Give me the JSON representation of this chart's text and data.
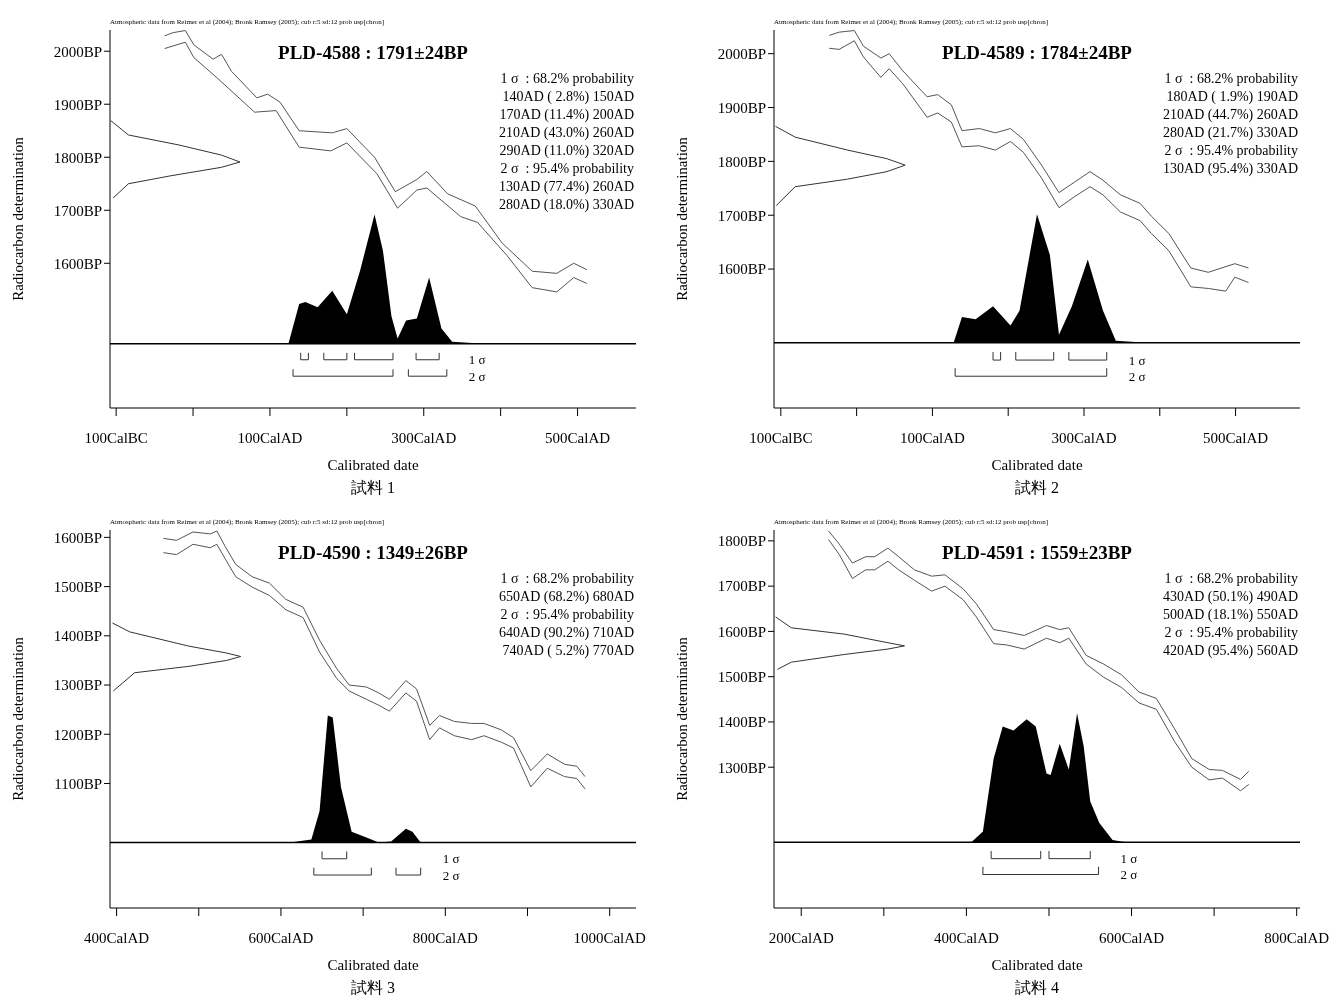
{
  "chart_data": [
    {
      "type": "line",
      "title": "PLD-4588 : 1791±24BP",
      "xlabel": "Calibrated date",
      "ylabel": "Radiocarbon determination",
      "xlim": [
        -108,
        576
      ],
      "ylim": [
        1327,
        2040
      ],
      "ref_lines": [
        {
          "axis": "y",
          "value": 1448,
          "color": "#000000"
        }
      ],
      "xticks": [
        {
          "value": -100,
          "label": "100CalBC"
        },
        {
          "value": 0,
          "label": null
        },
        {
          "value": 100,
          "label": "100CalAD"
        },
        {
          "value": 200,
          "label": null
        },
        {
          "value": 300,
          "label": "300CalAD"
        },
        {
          "value": 400,
          "label": null
        },
        {
          "value": 500,
          "label": "500CalAD"
        }
      ],
      "yticks": [
        {
          "value": 1600,
          "label": "1600BP"
        },
        {
          "value": 1700,
          "label": "1700BP"
        },
        {
          "value": 1800,
          "label": "1800BP"
        },
        {
          "value": 1900,
          "label": "1900BP"
        },
        {
          "value": 2000,
          "label": "2000BP"
        }
      ],
      "series": [
        {
          "color": "#555555",
          "x": [
            -37,
            -26,
            -10,
            1,
            26,
            37,
            50,
            83,
            97,
            113,
            138,
            181,
            200,
            236,
            263,
            291,
            304,
            331,
            367,
            402,
            441,
            473,
            495,
            512
          ],
          "values": [
            2029,
            2035,
            2039,
            2012,
            1985,
            1994,
            1962,
            1912,
            1919,
            1904,
            1850,
            1846,
            1854,
            1800,
            1735,
            1758,
            1773,
            1731,
            1708,
            1638,
            1585,
            1581,
            1600,
            1588
          ]
        },
        {
          "color": "#555555",
          "x": [
            -37,
            -10,
            1,
            31,
            80,
            108,
            138,
            179,
            200,
            239,
            266,
            291,
            304,
            348,
            370,
            408,
            441,
            473,
            495,
            512
          ],
          "values": [
            2005,
            2017,
            1988,
            1950,
            1885,
            1888,
            1819,
            1812,
            1827,
            1769,
            1704,
            1738,
            1742,
            1688,
            1677,
            1615,
            1554,
            1546,
            1573,
            1562
          ]
        },
        {
          "color": "#333333",
          "x": [
            -107,
            -84,
            -18,
            37,
            61,
            37,
            -29,
            -84,
            -104
          ],
          "values": [
            1869,
            1842,
            1823,
            1804,
            1791,
            1781,
            1765,
            1750,
            1723
          ]
        },
        {
          "type": "area",
          "color": "#000000",
          "x": [
            -34,
            124,
            138,
            146,
            162,
            181,
            200,
            217,
            236,
            247,
            258,
            266,
            277,
            291,
            307,
            323,
            337,
            378,
            512
          ],
          "values": [
            1448,
            1448,
            1523,
            1527,
            1517,
            1548,
            1504,
            1585,
            1692,
            1623,
            1500,
            1458,
            1492,
            1496,
            1573,
            1477,
            1452,
            1448,
            1448
          ]
        },
        {
          "color": "#333333",
          "x": [
            140,
            140,
            150,
            150,
            160,
            170,
            170,
            200,
            200,
            205,
            210,
            210,
            260,
            260,
            275,
            290,
            290,
            320,
            320
          ],
          "values": [
            1431,
            1418,
            1418,
            1431,
            null,
            1431,
            1418,
            1418,
            1431,
            null,
            1431,
            1418,
            1418,
            1431,
            null,
            1431,
            1418,
            1418,
            1431
          ]
        },
        {
          "color": "#333333",
          "x": [
            130,
            130,
            260,
            260,
            270,
            280,
            280,
            330,
            330
          ],
          "values": [
            1400,
            1387,
            1387,
            1400,
            null,
            1400,
            1387,
            1387,
            1400
          ]
        }
      ],
      "annotations": [
        "Atmospheric data from Reimer et al (2004); Bronk Ramsey (2005); cub r:5 sd:12 prob usp[chron]",
        "1 σ  : 68.2% probability",
        "140AD ( 2.8%) 150AD",
        "170AD (11.4%) 200AD",
        "210AD (43.0%) 260AD",
        "290AD (11.0%) 320AD",
        "2 σ  : 95.4% probability",
        "130AD (77.4%) 260AD",
        "280AD (18.0%) 330AD",
        "1 σ",
        "2 σ",
        "試料 1"
      ]
    },
    {
      "type": "line",
      "title": "PLD-4589 : 1784±24BP",
      "xlabel": "Calibrated date",
      "ylabel": "Radiocarbon determination",
      "xlim": [
        -109,
        585
      ],
      "ylim": [
        1342,
        2044
      ],
      "ref_lines": [
        {
          "axis": "y",
          "value": 1463,
          "color": "#000000"
        }
      ],
      "xticks": [
        {
          "value": -100,
          "label": "100CalBC"
        },
        {
          "value": 0,
          "label": null
        },
        {
          "value": 100,
          "label": "100CalAD"
        },
        {
          "value": 200,
          "label": null
        },
        {
          "value": 300,
          "label": "300CalAD"
        },
        {
          "value": 400,
          "label": null
        },
        {
          "value": 500,
          "label": "500CalAD"
        }
      ],
      "yticks": [
        {
          "value": 1600,
          "label": "1600BP"
        },
        {
          "value": 1700,
          "label": "1700BP"
        },
        {
          "value": 1800,
          "label": "1800BP"
        },
        {
          "value": 1900,
          "label": "1900BP"
        },
        {
          "value": 2000,
          "label": "2000BP"
        }
      ],
      "series": [
        {
          "color": "#555555",
          "x": [
            -36,
            -23,
            -3,
            9,
            32,
            43,
            61,
            93,
            107,
            125,
            139,
            162,
            183,
            203,
            220,
            244,
            267,
            287,
            308,
            325,
            348,
            374,
            389,
            412,
            441,
            464,
            499,
            517
          ],
          "values": [
            2034,
            2040,
            2043,
            2014,
            1992,
            2000,
            1968,
            1920,
            1924,
            1905,
            1857,
            1861,
            1853,
            1861,
            1841,
            1793,
            1742,
            1761,
            1781,
            1765,
            1738,
            1722,
            1698,
            1666,
            1602,
            1594,
            1610,
            1602
          ]
        },
        {
          "color": "#555555",
          "x": [
            -36,
            -23,
            -3,
            9,
            32,
            43,
            61,
            93,
            107,
            125,
            139,
            162,
            183,
            203,
            220,
            244,
            267,
            287,
            308,
            325,
            348,
            374,
            389,
            412,
            441,
            464,
            487,
            499,
            517
          ],
          "values": [
            2010,
            2008,
            2024,
            1994,
            1956,
            1972,
            1944,
            1882,
            1890,
            1873,
            1827,
            1829,
            1821,
            1837,
            1817,
            1769,
            1714,
            1734,
            1753,
            1738,
            1706,
            1690,
            1666,
            1634,
            1567,
            1564,
            1559,
            1585,
            1575
          ]
        },
        {
          "color": "#333333",
          "x": [
            -107,
            -81,
            -12,
            40,
            64,
            40,
            -12,
            -81,
            -106
          ],
          "values": [
            1865,
            1845,
            1821,
            1805,
            1793,
            1781,
            1767,
            1753,
            1718
          ]
        },
        {
          "type": "area",
          "color": "#000000",
          "x": [
            -35,
            128,
            139,
            157,
            180,
            203,
            215,
            238,
            255,
            267,
            284,
            305,
            325,
            342,
            383,
            519
          ],
          "values": [
            1463,
            1463,
            1511,
            1507,
            1531,
            1495,
            1523,
            1702,
            1626,
            1478,
            1531,
            1618,
            1523,
            1467,
            1463,
            1463
          ]
        },
        {
          "color": "#333333",
          "x": [
            180,
            180,
            190,
            190,
            200,
            210,
            210,
            260,
            260,
            270,
            280,
            280,
            330,
            330
          ],
          "values": [
            1446,
            1431,
            1431,
            1446,
            null,
            1446,
            1431,
            1431,
            1446,
            null,
            1446,
            1431,
            1431,
            1446
          ]
        },
        {
          "color": "#333333",
          "x": [
            130,
            130,
            330,
            330
          ],
          "values": [
            1416,
            1401,
            1401,
            1416
          ]
        }
      ],
      "annotations": [
        "Atmospheric data from Reimer et al (2004); Bronk Ramsey (2005); cub r:5 sd:12 prob usp[chron]",
        "1 σ  : 68.2% probability",
        "180AD ( 1.9%) 190AD",
        "210AD (44.7%) 260AD",
        "280AD (21.7%) 330AD",
        "2 σ  : 95.4% probability",
        "130AD (95.4%) 330AD",
        "1 σ",
        "2 σ",
        "試料 2"
      ]
    },
    {
      "type": "line",
      "title": "PLD-4590 : 1349±26BP",
      "xlabel": "Calibrated date",
      "ylabel": "Radiocarbon determination",
      "xlim": [
        392,
        1032
      ],
      "ylim": [
        847,
        1615
      ],
      "ref_lines": [
        {
          "axis": "y",
          "value": 980,
          "color": "#000000"
        }
      ],
      "xticks": [
        {
          "value": 400,
          "label": "400CalAD"
        },
        {
          "value": 500,
          "label": null
        },
        {
          "value": 600,
          "label": "600CalAD"
        },
        {
          "value": 700,
          "label": null
        },
        {
          "value": 800,
          "label": "800CalAD"
        },
        {
          "value": 900,
          "label": null
        },
        {
          "value": 1000,
          "label": "1000CalAD"
        }
      ],
      "yticks": [
        {
          "value": 1100,
          "label": "1100BP"
        },
        {
          "value": 1200,
          "label": "1200BP"
        },
        {
          "value": 1300,
          "label": "1300BP"
        },
        {
          "value": 1400,
          "label": "1400BP"
        },
        {
          "value": 1500,
          "label": "1500BP"
        },
        {
          "value": 1600,
          "label": "1600BP"
        }
      ],
      "series": [
        {
          "color": "#555555",
          "x": [
            457,
            473,
            493,
            514,
            522,
            532,
            545,
            565,
            586,
            606,
            627,
            647,
            668,
            683,
            704,
            719,
            732,
            752,
            765,
            781,
            793,
            811,
            832,
            847,
            868,
            883,
            904,
            924,
            945,
            960,
            970
          ],
          "values": [
            1598,
            1594,
            1611,
            1607,
            1613,
            1582,
            1545,
            1520,
            1507,
            1474,
            1458,
            1391,
            1333,
            1300,
            1296,
            1284,
            1271,
            1309,
            1292,
            1218,
            1238,
            1226,
            1222,
            1222,
            1209,
            1193,
            1126,
            1160,
            1139,
            1135,
            1114
          ]
        },
        {
          "color": "#555555",
          "x": [
            457,
            473,
            493,
            514,
            522,
            532,
            545,
            565,
            586,
            606,
            627,
            647,
            668,
            683,
            704,
            719,
            732,
            752,
            765,
            781,
            793,
            811,
            832,
            847,
            868,
            883,
            904,
            924,
            945,
            960,
            970
          ],
          "values": [
            1569,
            1565,
            1586,
            1579,
            1586,
            1557,
            1520,
            1499,
            1482,
            1453,
            1437,
            1367,
            1313,
            1288,
            1271,
            1259,
            1247,
            1284,
            1267,
            1189,
            1213,
            1197,
            1189,
            1197,
            1184,
            1172,
            1093,
            1131,
            1114,
            1110,
            1089
          ]
        },
        {
          "color": "#333333",
          "x": [
            395,
            416,
            488,
            534,
            551,
            534,
            488,
            422,
            396
          ],
          "values": [
            1426,
            1408,
            1379,
            1365,
            1358,
            1350,
            1338,
            1325,
            1288
          ]
        },
        {
          "type": "area",
          "color": "#000000",
          "x": [
            457,
            611,
            637,
            647,
            657,
            663,
            673,
            686,
            704,
            719,
            734,
            752,
            760,
            770,
            970
          ],
          "values": [
            980,
            980,
            986,
            1044,
            1238,
            1234,
            1093,
            1002,
            990,
            980,
            982,
            1008,
            1002,
            980,
            980
          ]
        },
        {
          "color": "#333333",
          "x": [
            650,
            650,
            680,
            680
          ],
          "values": [
            962,
            947,
            947,
            962
          ]
        },
        {
          "color": "#333333",
          "x": [
            640,
            640,
            710,
            710,
            725,
            740,
            740,
            770,
            770
          ],
          "values": [
            929,
            914,
            914,
            929,
            null,
            929,
            914,
            914,
            929
          ]
        }
      ],
      "annotations": [
        "Atmospheric data from Reimer et al (2004); Bronk Ramsey (2005); cub r:5 sd:12 prob usp[chron]",
        "1 σ  : 68.2% probability",
        "650AD (68.2%) 680AD",
        "2 σ  : 95.4% probability",
        "640AD (90.2%) 710AD",
        "740AD ( 5.2%) 770AD",
        "1 σ",
        "2 σ",
        "試料 3"
      ]
    },
    {
      "type": "line",
      "title": "PLD-4591 : 1559±23BP",
      "xlabel": "Calibrated date",
      "ylabel": "Radiocarbon determination",
      "xlim": [
        167,
        804
      ],
      "ylim": [
        989,
        1824
      ],
      "ref_lines": [
        {
          "axis": "y",
          "value": 1134,
          "color": "#000000"
        }
      ],
      "xticks": [
        {
          "value": 200,
          "label": "200CalAD"
        },
        {
          "value": 300,
          "label": null
        },
        {
          "value": 400,
          "label": "400CalAD"
        },
        {
          "value": 500,
          "label": null
        },
        {
          "value": 600,
          "label": "600CalAD"
        },
        {
          "value": 700,
          "label": null
        },
        {
          "value": 800,
          "label": "800CalAD"
        }
      ],
      "yticks": [
        {
          "value": 1300,
          "label": "1300BP"
        },
        {
          "value": 1400,
          "label": "1400BP"
        },
        {
          "value": 1500,
          "label": "1500BP"
        },
        {
          "value": 1600,
          "label": "1600BP"
        },
        {
          "value": 1700,
          "label": "1700BP"
        },
        {
          "value": 1800,
          "label": "1800BP"
        }
      ],
      "series": [
        {
          "color": "#555555",
          "x": [
            233,
            246,
            262,
            278,
            289,
            305,
            318,
            337,
            358,
            374,
            396,
            412,
            433,
            449,
            470,
            497,
            513,
            524,
            545,
            566,
            588,
            609,
            630,
            652,
            673,
            694,
            710,
            732,
            742
          ],
          "values": [
            1822,
            1793,
            1751,
            1765,
            1765,
            1784,
            1765,
            1736,
            1722,
            1725,
            1694,
            1661,
            1604,
            1599,
            1591,
            1613,
            1604,
            1608,
            1547,
            1528,
            1504,
            1466,
            1452,
            1385,
            1319,
            1295,
            1293,
            1273,
            1291
          ]
        },
        {
          "color": "#555555",
          "x": [
            233,
            246,
            262,
            278,
            289,
            305,
            318,
            337,
            358,
            374,
            396,
            412,
            433,
            449,
            470,
            497,
            513,
            524,
            545,
            566,
            588,
            609,
            630,
            652,
            673,
            694,
            710,
            732,
            742
          ],
          "values": [
            1803,
            1770,
            1717,
            1736,
            1736,
            1755,
            1736,
            1713,
            1689,
            1700,
            1670,
            1632,
            1573,
            1570,
            1561,
            1585,
            1575,
            1585,
            1528,
            1499,
            1476,
            1442,
            1428,
            1357,
            1300,
            1272,
            1276,
            1248,
            1262
          ]
        },
        {
          "color": "#333333",
          "x": [
            169,
            188,
            252,
            305,
            325,
            305,
            252,
            188,
            171
          ],
          "values": [
            1632,
            1608,
            1594,
            1575,
            1568,
            1561,
            1549,
            1532,
            1516
          ]
        },
        {
          "type": "area",
          "color": "#000000",
          "x": [
            235,
            406,
            420,
            433,
            444,
            457,
            473,
            484,
            497,
            502,
            513,
            524,
            534,
            542,
            550,
            561,
            577,
            593,
            742
          ],
          "values": [
            1134,
            1134,
            1158,
            1319,
            1390,
            1381,
            1406,
            1390,
            1286,
            1283,
            1352,
            1295,
            1419,
            1347,
            1224,
            1177,
            1139,
            1134,
            1134
          ]
        },
        {
          "color": "#333333",
          "x": [
            430,
            430,
            490,
            490,
            495,
            500,
            500,
            550,
            550
          ],
          "values": [
            1115,
            1098,
            1098,
            1115,
            null,
            1115,
            1098,
            1098,
            1115
          ]
        },
        {
          "color": "#333333",
          "x": [
            420,
            420,
            560,
            560
          ],
          "values": [
            1080,
            1063,
            1063,
            1080
          ]
        }
      ],
      "annotations": [
        "Atmospheric data from Reimer et al (2004); Bronk Ramsey (2005); cub r:5 sd:12 prob usp[chron]",
        "1 σ  : 68.2% probability",
        "430AD (50.1%) 490AD",
        "500AD (18.1%) 550AD",
        "2 σ  : 95.4% probability",
        "420AD (95.4%) 560AD",
        "1 σ",
        "2 σ",
        "試料 4"
      ]
    }
  ]
}
